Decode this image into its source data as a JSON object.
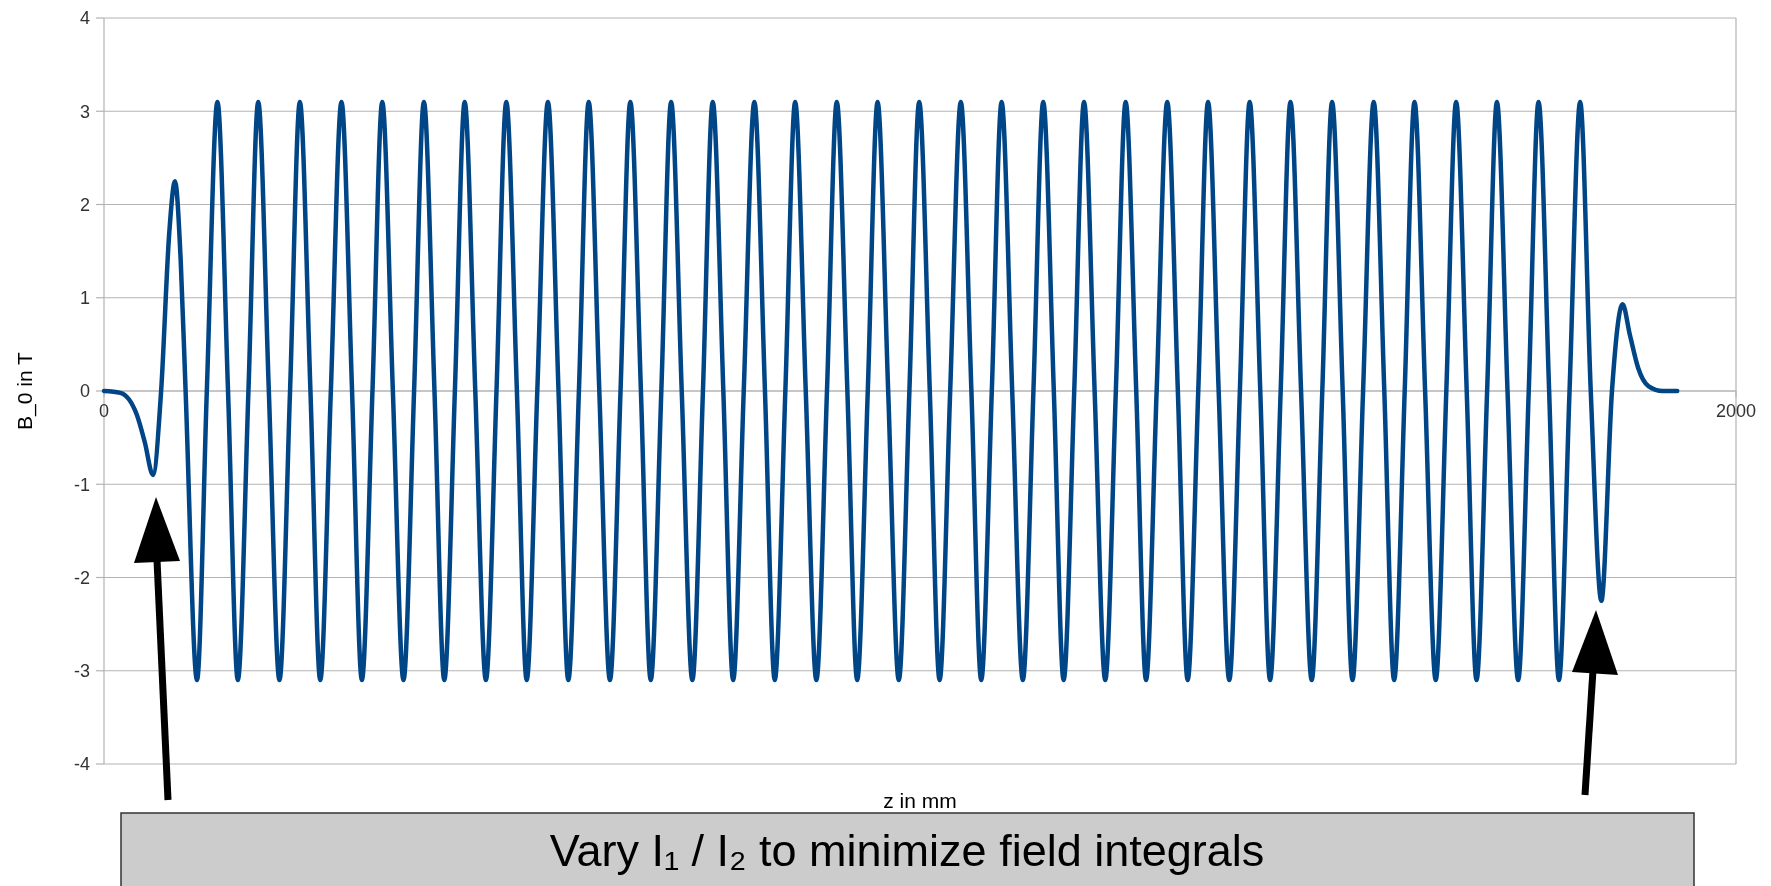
{
  "chart_data": {
    "type": "line",
    "xlabel": "z in mm",
    "ylabel": "B_0 in T",
    "xlim": [
      0,
      2000
    ],
    "xticks": [
      0,
      2000
    ],
    "ylim": [
      -4,
      4
    ],
    "yticks": [
      -4,
      -3,
      -2,
      -1,
      0,
      1,
      2,
      3,
      4
    ],
    "grid": "y",
    "annotations": [
      "Vary I₁ / I₂ to minimize field integrals"
    ],
    "series": [
      {
        "color": "#004586",
        "x": [
          0,
          20,
          40,
          50,
          60,
          70,
          80,
          87,
          94,
          100,
          114,
          126,
          139,
          152,
          164,
          177,
          189,
          202,
          215,
          228,
          240,
          253,
          265,
          278,
          291,
          304,
          316,
          329,
          341,
          354,
          367,
          380,
          392,
          405,
          417,
          430,
          442,
          455,
          468,
          481,
          493,
          506,
          518,
          531,
          544,
          557,
          569,
          582,
          594,
          607,
          620,
          633,
          645,
          658,
          670,
          683,
          695,
          708,
          721,
          734,
          746,
          759,
          771,
          784,
          797,
          810,
          822,
          835,
          847,
          860,
          873,
          886,
          898,
          911,
          923,
          936,
          948,
          961,
          974,
          987,
          999,
          1012,
          1024,
          1037,
          1050,
          1063,
          1075,
          1088,
          1100,
          1113,
          1126,
          1139,
          1151,
          1164,
          1176,
          1189,
          1201,
          1214,
          1227,
          1240,
          1252,
          1265,
          1277,
          1290,
          1303,
          1316,
          1328,
          1341,
          1353,
          1366,
          1379,
          1392,
          1404,
          1417,
          1429,
          1442,
          1454,
          1467,
          1480,
          1493,
          1505,
          1518,
          1530,
          1543,
          1556,
          1569,
          1581,
          1594,
          1606,
          1619,
          1632,
          1645,
          1657,
          1670,
          1682,
          1695,
          1707,
          1720,
          1733,
          1746,
          1758,
          1771,
          1783,
          1796,
          1809,
          1822,
          1835,
          1848,
          1861,
          1870,
          1880,
          1893,
          1910,
          1928
        ],
        "values": [
          0,
          -0.02,
          -0.25,
          -0.55,
          -0.9,
          0,
          1.7,
          2.25,
          1.4,
          0,
          -3.1,
          0,
          3.1,
          0,
          -3.1,
          0,
          3.1,
          0,
          -3.1,
          0,
          3.1,
          0,
          -3.1,
          0,
          3.1,
          0,
          -3.1,
          0,
          3.1,
          0,
          -3.1,
          0,
          3.1,
          0,
          -3.1,
          0,
          3.1,
          0,
          -3.1,
          0,
          3.1,
          0,
          -3.1,
          0,
          3.1,
          0,
          -3.1,
          0,
          3.1,
          0,
          -3.1,
          0,
          3.1,
          0,
          -3.1,
          0,
          3.1,
          0,
          -3.1,
          0,
          3.1,
          0,
          -3.1,
          0,
          3.1,
          0,
          -3.1,
          0,
          3.1,
          0,
          -3.1,
          0,
          3.1,
          0,
          -3.1,
          0,
          3.1,
          0,
          -3.1,
          0,
          3.1,
          0,
          -3.1,
          0,
          3.1,
          0,
          -3.1,
          0,
          3.1,
          0,
          -3.1,
          0,
          3.1,
          0,
          -3.1,
          0,
          3.1,
          0,
          -3.1,
          0,
          3.1,
          0,
          -3.1,
          0,
          3.1,
          0,
          -3.1,
          0,
          3.1,
          0,
          -3.1,
          0,
          3.1,
          0,
          -3.1,
          0,
          3.1,
          0,
          -3.1,
          0,
          3.1,
          0,
          -3.1,
          0,
          3.1,
          0,
          -3.1,
          0,
          3.1,
          0,
          -3.1,
          0,
          3.1,
          0,
          -3.1,
          0,
          3.1,
          0,
          -3.1,
          0,
          3.1,
          0,
          -3.1,
          0,
          3.1,
          0,
          -2.25,
          0,
          0.93,
          0.6,
          0.25,
          0.05,
          0,
          0
        ]
      }
    ]
  }
}
